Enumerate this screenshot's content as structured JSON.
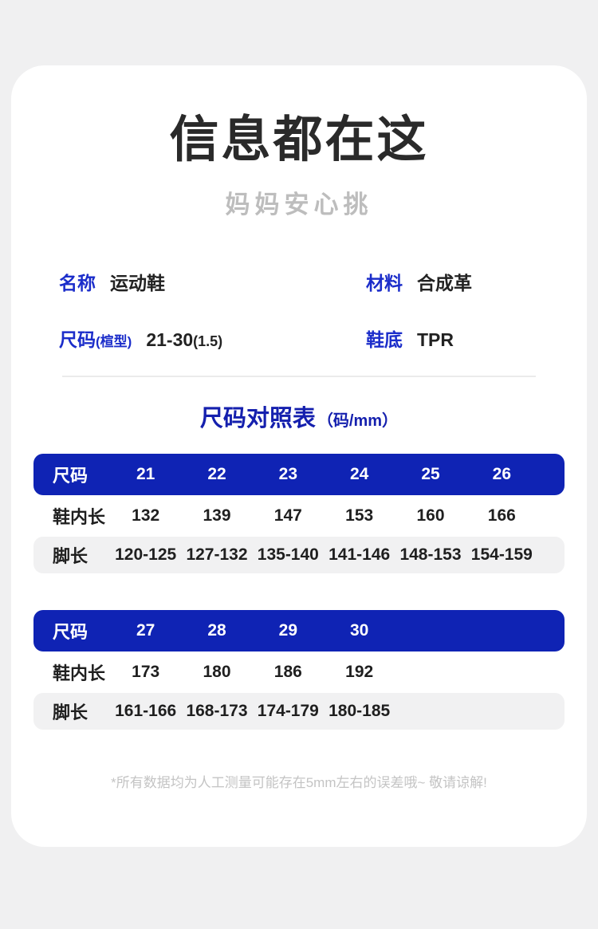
{
  "page": {
    "title": "信息都在这",
    "subtitle": "妈妈安心挑",
    "footnote": "*所有数据均为人工测量可能存在5mm左右的误差哦~ 敬请谅解!"
  },
  "colors": {
    "accent_blue": "#0f23b4",
    "label_blue": "#1b2dca",
    "page_background": "#f0f0f1",
    "alt_row_gray": "#f1f1f2"
  },
  "specs": {
    "items": [
      {
        "label": "名称",
        "label_suffix": "",
        "value": "运动鞋",
        "value_suffix": ""
      },
      {
        "label": "材料",
        "label_suffix": "",
        "value": "合成革",
        "value_suffix": ""
      },
      {
        "label": "尺码",
        "label_suffix": "(楦型)",
        "value": "21-30",
        "value_suffix": "(1.5)"
      },
      {
        "label": "鞋底",
        "label_suffix": "",
        "value": "TPR",
        "value_suffix": ""
      }
    ]
  },
  "size_chart": {
    "title": "尺码对照表",
    "unit": "（码/mm）",
    "tables": [
      {
        "header": {
          "label": "尺码",
          "cols": [
            "21",
            "22",
            "23",
            "24",
            "25",
            "26"
          ]
        },
        "rows": [
          {
            "label": "鞋内长",
            "cols": [
              "132",
              "139",
              "147",
              "153",
              "160",
              "166"
            ]
          },
          {
            "label": "脚长",
            "cols": [
              "120-125",
              "127-132",
              "135-140",
              "141-146",
              "148-153",
              "154-159"
            ]
          }
        ]
      },
      {
        "header": {
          "label": "尺码",
          "cols": [
            "27",
            "28",
            "29",
            "30",
            "",
            ""
          ]
        },
        "rows": [
          {
            "label": "鞋内长",
            "cols": [
              "173",
              "180",
              "186",
              "192",
              "",
              ""
            ]
          },
          {
            "label": "脚长",
            "cols": [
              "161-166",
              "168-173",
              "174-179",
              "180-185",
              "",
              ""
            ]
          }
        ]
      }
    ]
  }
}
